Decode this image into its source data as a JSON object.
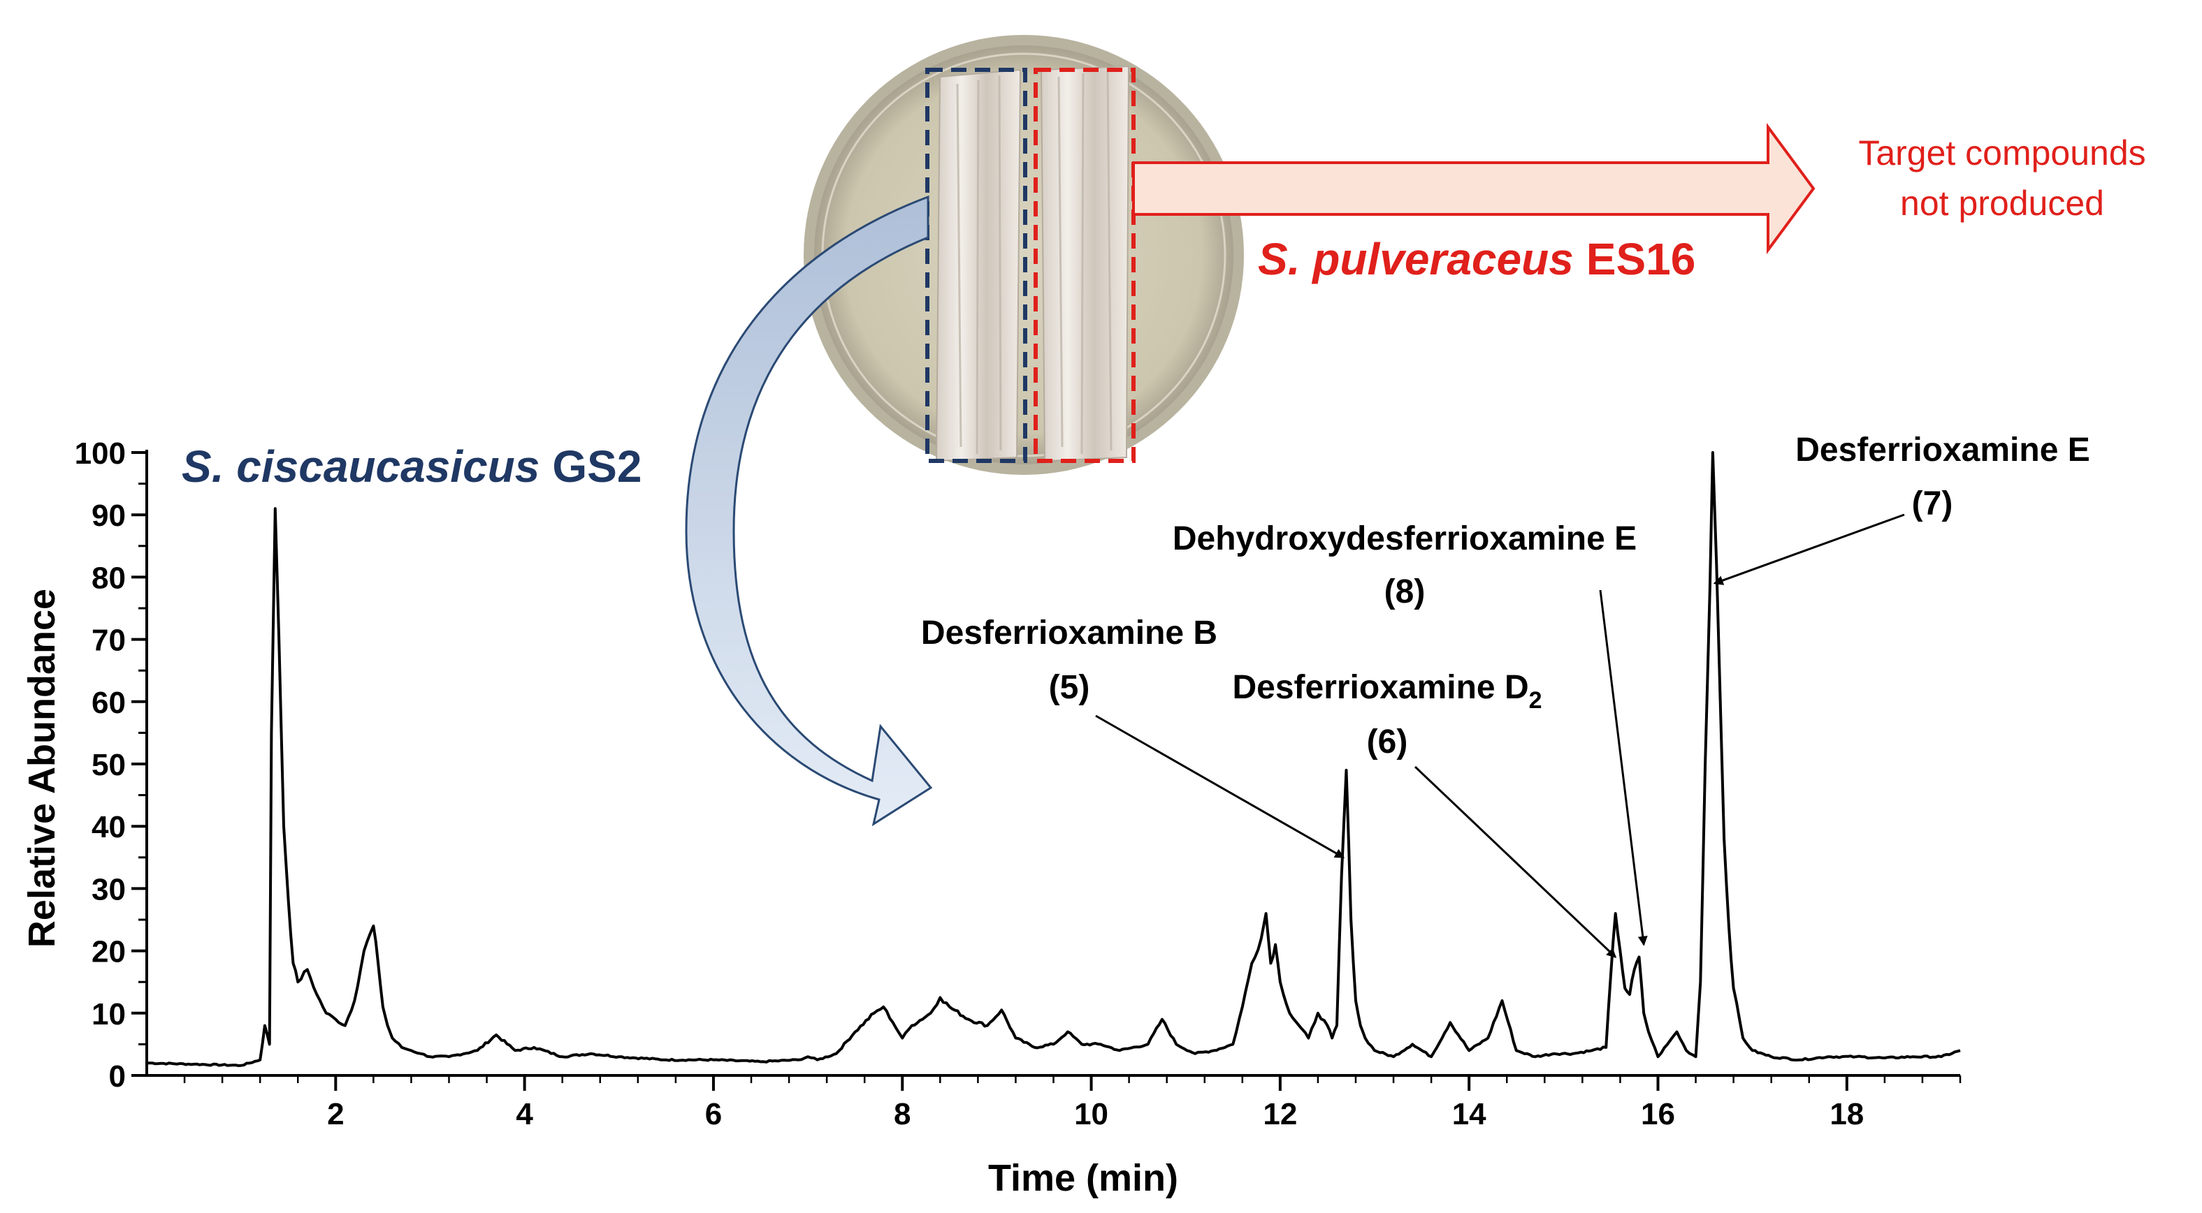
{
  "chart_data": {
    "type": "line",
    "xlabel": "Time (min)",
    "ylabel": "Relative Abundance",
    "xlim": [
      0,
      19.2
    ],
    "ylim": [
      0,
      100
    ],
    "xticks": [
      2,
      4,
      6,
      8,
      10,
      12,
      14,
      16,
      18
    ],
    "yticks": [
      0,
      10,
      20,
      30,
      40,
      50,
      60,
      70,
      80,
      90,
      100
    ],
    "grid": false,
    "series": [
      {
        "name": "S. ciscaucasicus GS2",
        "color": "#000000",
        "x": [
          0.0,
          0.5,
          1.0,
          1.2,
          1.25,
          1.3,
          1.32,
          1.36,
          1.4,
          1.45,
          1.5,
          1.55,
          1.6,
          1.7,
          1.8,
          1.9,
          2.0,
          2.1,
          2.2,
          2.3,
          2.4,
          2.45,
          2.5,
          2.55,
          2.6,
          2.7,
          2.8,
          2.9,
          3.0,
          3.2,
          3.5,
          3.7,
          3.9,
          4.1,
          4.4,
          4.7,
          5.0,
          5.5,
          6.0,
          6.5,
          6.9,
          7.0,
          7.1,
          7.3,
          7.5,
          7.7,
          7.8,
          7.9,
          8.0,
          8.1,
          8.3,
          8.4,
          8.5,
          8.7,
          8.9,
          9.05,
          9.2,
          9.4,
          9.6,
          9.75,
          9.9,
          10.1,
          10.3,
          10.6,
          10.75,
          10.9,
          11.1,
          11.3,
          11.5,
          11.6,
          11.7,
          11.8,
          11.85,
          11.9,
          11.95,
          12.0,
          12.1,
          12.2,
          12.3,
          12.4,
          12.5,
          12.55,
          12.6,
          12.65,
          12.7,
          12.75,
          12.8,
          12.85,
          12.9,
          13.0,
          13.2,
          13.4,
          13.6,
          13.8,
          14.0,
          14.2,
          14.35,
          14.5,
          14.7,
          14.9,
          15.1,
          15.3,
          15.45,
          15.5,
          15.55,
          15.6,
          15.65,
          15.7,
          15.75,
          15.8,
          15.85,
          15.9,
          16.0,
          16.1,
          16.2,
          16.3,
          16.4,
          16.45,
          16.5,
          16.55,
          16.58,
          16.62,
          16.66,
          16.7,
          16.75,
          16.8,
          16.9,
          17.0,
          17.2,
          17.5,
          17.8,
          18.1,
          18.4,
          18.7,
          19.0,
          19.2
        ],
        "values": [
          2,
          1.8,
          1.6,
          2.5,
          8,
          5,
          55,
          91,
          70,
          40,
          28,
          18,
          15,
          17,
          13,
          10,
          9,
          8,
          12,
          20,
          24,
          18,
          11,
          8,
          6,
          4.5,
          4,
          3.5,
          3,
          3,
          4,
          6.5,
          4,
          4.5,
          3,
          3.5,
          3,
          2.5,
          2.5,
          2.2,
          2.5,
          3,
          2.5,
          3.5,
          7,
          10,
          11,
          8.5,
          6,
          8,
          10,
          12.5,
          11,
          9,
          8,
          10.5,
          6,
          4.5,
          5,
          7,
          5,
          5,
          4,
          5,
          9,
          5,
          3.5,
          4,
          5,
          11,
          18,
          22,
          26,
          18,
          21,
          15,
          10,
          8,
          6,
          10,
          8,
          6,
          8,
          32,
          49,
          25,
          12,
          8,
          6,
          4,
          3,
          5,
          3,
          8.5,
          4,
          6,
          12,
          4,
          3,
          3.5,
          3.5,
          4,
          4.5,
          16,
          26,
          20,
          14,
          13,
          17,
          19,
          10,
          7,
          3,
          5,
          7,
          4,
          3,
          15,
          50,
          78,
          100,
          82,
          60,
          38,
          24,
          14,
          6,
          4,
          3,
          2.5,
          3,
          3,
          2.8,
          3,
          3,
          4
        ]
      }
    ],
    "annotations": [
      {
        "text": "Desferrioxamine B",
        "number": "(5)",
        "x": 12.67,
        "y": 35
      },
      {
        "text": "Desferrioxamine D",
        "subscript": "2",
        "number": "(6)",
        "x": 15.55,
        "y": 19
      },
      {
        "text": "Dehydroxydesferrioxamine E",
        "number": "(8)",
        "x": 15.85,
        "y": 21
      },
      {
        "text": "Desferrioxamine E",
        "number": "(7)",
        "x": 16.6,
        "y": 79
      }
    ]
  },
  "labels": {
    "series_label": {
      "species": "S. ciscaucasicus",
      "strain": "GS2",
      "color": "#1f3864"
    },
    "plate_label": {
      "species": "S. pulveraceus",
      "strain": "ES16",
      "color": "#e0201b"
    },
    "target_note": [
      "Target compounds",
      "not produced"
    ]
  },
  "colors": {
    "blue_box": "#1f3864",
    "red_box": "#e0201b",
    "arrow_fill": "#fbe3d8",
    "curved_arrow_fill": "#cfdcee",
    "agar": "#d8d2bc"
  }
}
